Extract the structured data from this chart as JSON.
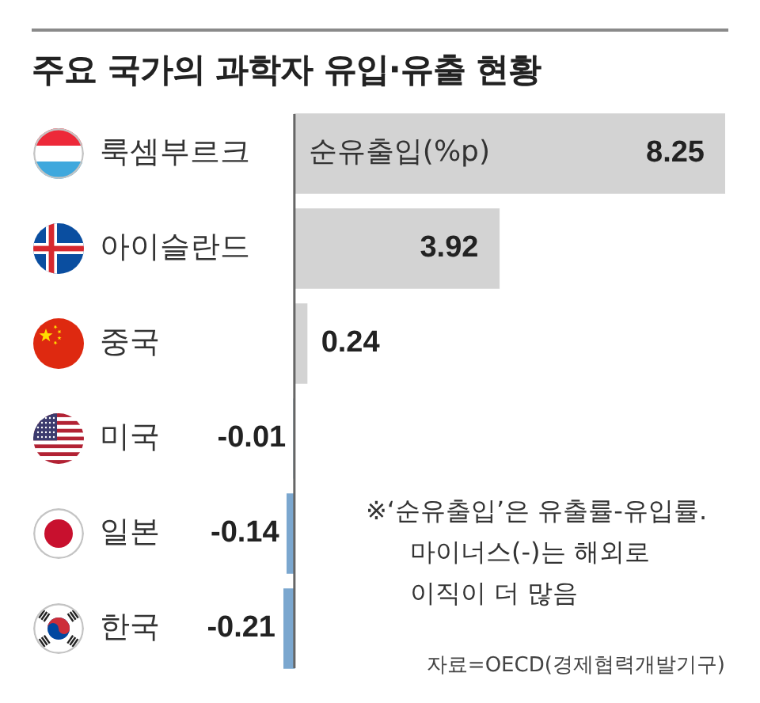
{
  "chart_data": {
    "type": "bar",
    "orientation": "horizontal",
    "title": "주요 국가의 과학자 유입·유출 현황",
    "xlabel": "순유출입(%p)",
    "categories": [
      "룩셈부르크",
      "아이슬란드",
      "중국",
      "미국",
      "일본",
      "한국"
    ],
    "values": [
      8.25,
      3.92,
      0.24,
      -0.01,
      -0.14,
      -0.21
    ],
    "colors": [
      "#d3d3d3",
      "#d3d3d3",
      "#d3d3d3",
      "#7ba7cf",
      "#7ba7cf",
      "#7ba7cf"
    ],
    "tick_labels": "y",
    "data_labels": true,
    "annotations": [
      "※‘순유출입’은 유출률-유입률.\n마이너스(-)는 해외로\n이직이 더 많음",
      "자료=OECD(경제협력개발기구)"
    ]
  }
}
